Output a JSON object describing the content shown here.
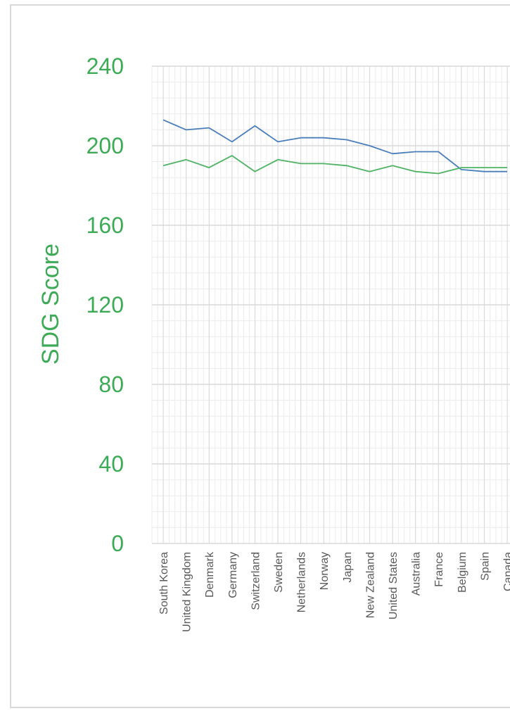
{
  "chart_data": {
    "type": "line",
    "title": "",
    "ylabel": "SDG Score",
    "ylim": [
      0,
      240
    ],
    "yticks": [
      0,
      40,
      80,
      120,
      160,
      200,
      240
    ],
    "grid": true,
    "categories": [
      "South Korea",
      "United Kingdom",
      "Denmark",
      "Germany",
      "Switzerland",
      "Sweden",
      "Netherlands",
      "Norway",
      "Japan",
      "New Zealand",
      "United States",
      "Australia",
      "France",
      "Belgium",
      "Spain",
      "Canada"
    ],
    "series": [
      {
        "color": "#4a7ebb",
        "values": [
          213,
          208,
          209,
          202,
          210,
          202,
          204,
          204,
          203,
          200,
          196,
          197,
          197,
          188,
          187,
          187
        ]
      },
      {
        "color": "#4eb364",
        "values": [
          190,
          193,
          189,
          195,
          187,
          193,
          191,
          191,
          190,
          187,
          190,
          187,
          186,
          189,
          189,
          189
        ]
      }
    ],
    "colors": {
      "axis_text": "#3daa56",
      "tick_label": "#595959",
      "major_grid": "#d9d9d9",
      "minor_grid": "#ececec"
    }
  }
}
